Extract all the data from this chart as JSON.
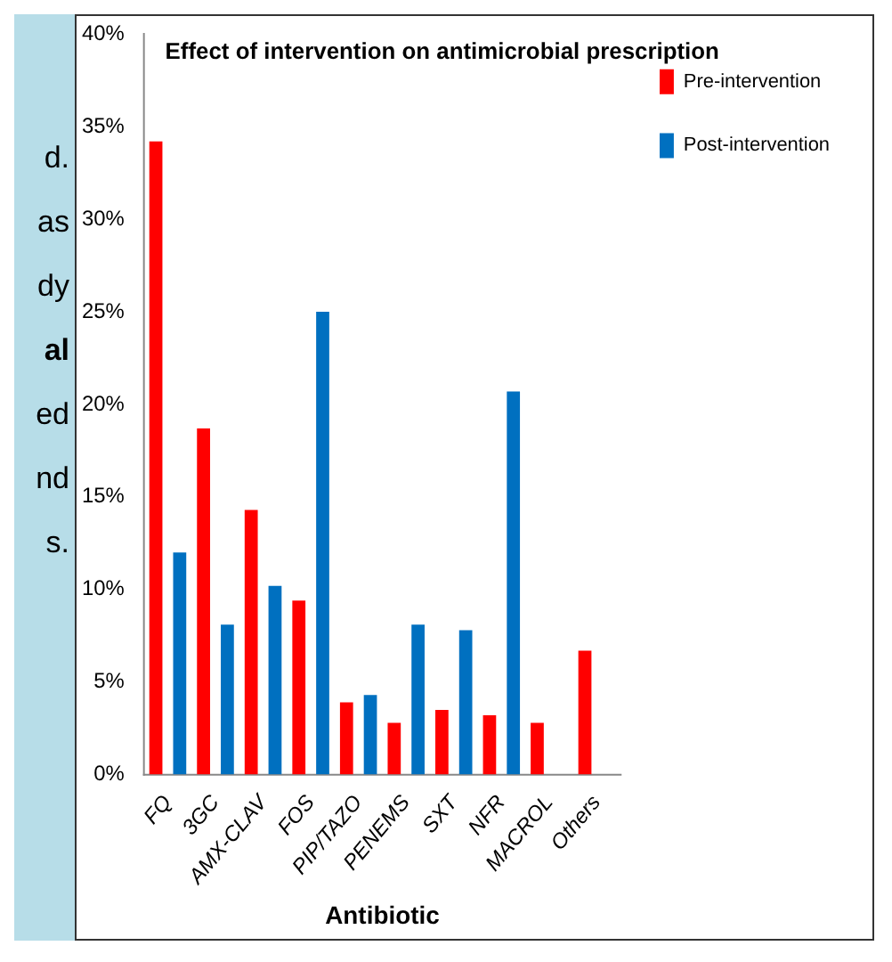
{
  "chart_data": {
    "type": "bar",
    "title": "Effect of intervention on antimicrobial prescription",
    "xlabel": "Antibiotic",
    "categories": [
      "FQ",
      "3GC",
      "AMX-CLAV",
      "FOS",
      "PIP/TAZO",
      "PENEMS",
      "SXT",
      "NFR",
      "MACROL",
      "Others"
    ],
    "series": [
      {
        "name": "Pre-intervention",
        "color": "#ff0000",
        "values": [
          34.2,
          18.7,
          14.3,
          9.4,
          3.9,
          2.8,
          3.5,
          3.2,
          2.8,
          6.7
        ]
      },
      {
        "name": "Post-intervention",
        "color": "#0070c0",
        "values": [
          12.0,
          8.1,
          10.2,
          25.0,
          4.3,
          8.1,
          7.8,
          20.7,
          null,
          null
        ]
      }
    ],
    "ylim": [
      0,
      40
    ],
    "yticks": [
      {
        "value": 0,
        "label": "0%"
      },
      {
        "value": 5,
        "label": "5%"
      },
      {
        "value": 10,
        "label": "10%"
      },
      {
        "value": 15,
        "label": "15%"
      },
      {
        "value": 20,
        "label": "20%"
      },
      {
        "value": 25,
        "label": "25%"
      },
      {
        "value": 30,
        "label": "30%"
      },
      {
        "value": 35,
        "label": "35%"
      },
      {
        "value": 40,
        "label": "40%"
      }
    ],
    "grid": false,
    "legend": "top right",
    "annotations": [
      "d.",
      "as",
      "dy",
      "al",
      "ed",
      "nd",
      "s."
    ]
  }
}
